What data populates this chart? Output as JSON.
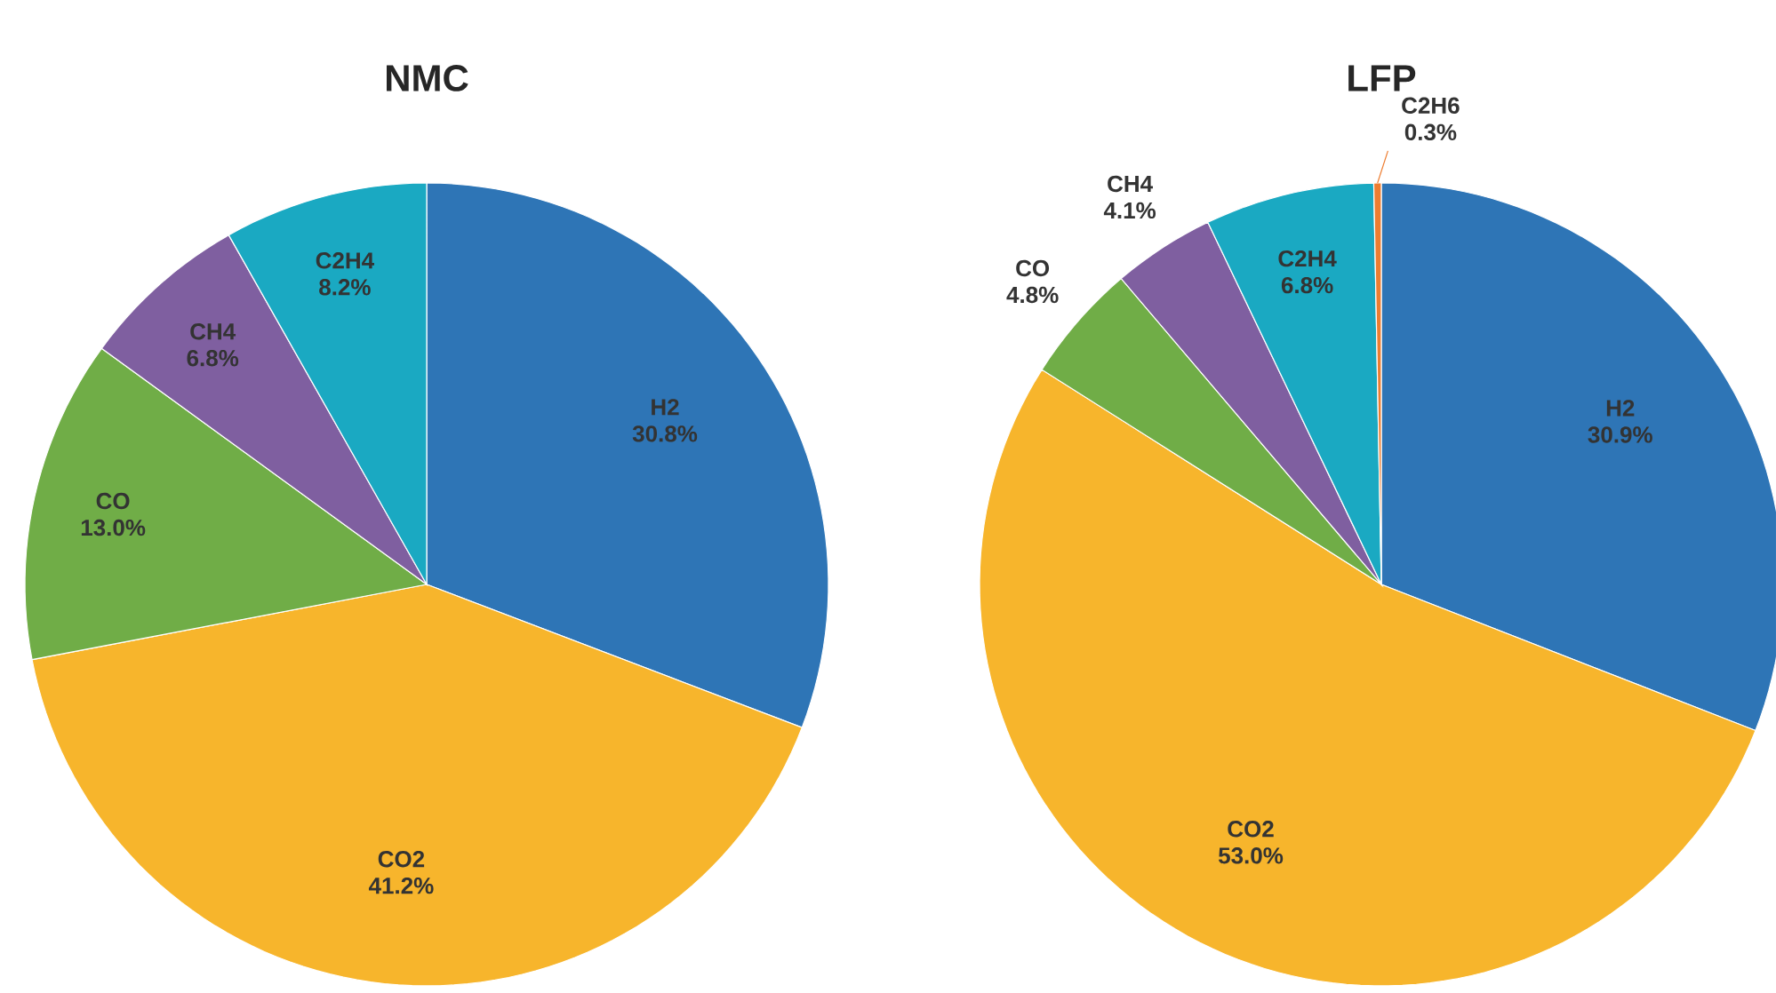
{
  "chart_data": [
    {
      "type": "pie",
      "title": "NMC",
      "categories": [
        "H2",
        "CO2",
        "CO",
        "CH4",
        "C2H4"
      ],
      "values": [
        30.8,
        41.2,
        13.0,
        6.8,
        8.2
      ],
      "value_labels": [
        "30.8%",
        "41.2%",
        "13.0%",
        "6.8%",
        "8.2%"
      ],
      "colors": [
        "#2e75b6",
        "#f7b52c",
        "#70ad47",
        "#7f5fa0",
        "#1aa9c2"
      ]
    },
    {
      "type": "pie",
      "title": "LFP",
      "categories": [
        "H2",
        "CO2",
        "CO",
        "CH4",
        "C2H4",
        "C2H6"
      ],
      "values": [
        30.9,
        53.0,
        4.8,
        4.1,
        6.8,
        0.3
      ],
      "value_labels": [
        "30.9%",
        "53.0%",
        "4.8%",
        "4.1%",
        "6.8%",
        "0.3%"
      ],
      "colors": [
        "#2e75b6",
        "#f7b52c",
        "#70ad47",
        "#7f5fa0",
        "#1aa9c2",
        "#ed7d31"
      ]
    }
  ]
}
